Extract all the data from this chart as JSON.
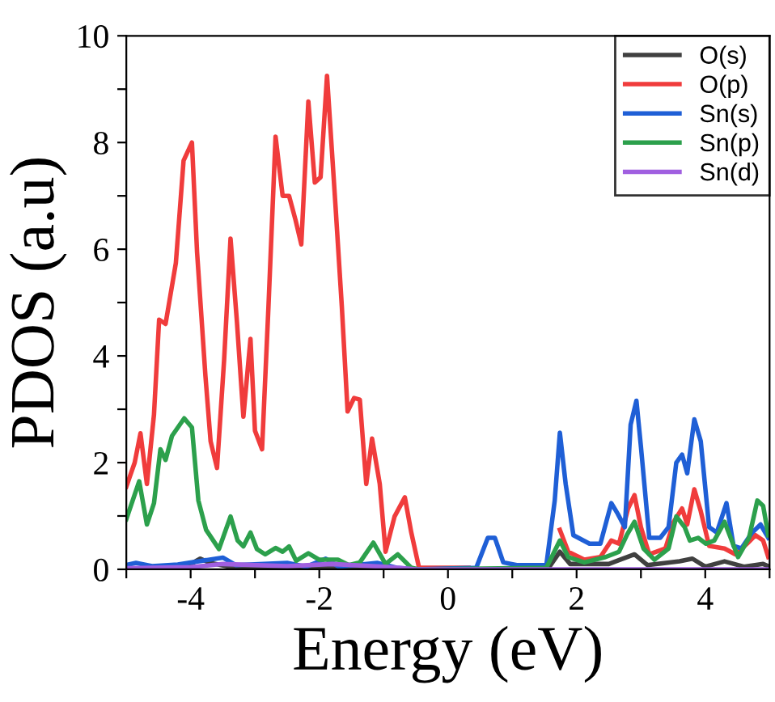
{
  "chart_data": {
    "type": "line",
    "xlabel": "Energy (eV)",
    "ylabel": "PDOS (a.u)",
    "xlim": [
      -5,
      5
    ],
    "ylim": [
      0,
      10
    ],
    "xticks": [
      {
        "value": -5,
        "label": null
      },
      -4,
      {
        "value": -3,
        "label": null
      },
      -2,
      {
        "value": -1,
        "label": null
      },
      0,
      {
        "value": 1,
        "label": null
      },
      2,
      {
        "value": 3,
        "label": null
      },
      4,
      {
        "value": 5,
        "label": null
      }
    ],
    "yticks": [
      0,
      {
        "value": 1,
        "label": null
      },
      2,
      {
        "value": 3,
        "label": null
      },
      4,
      {
        "value": 5,
        "label": null
      },
      6,
      {
        "value": 7,
        "label": null
      },
      8,
      {
        "value": 9,
        "label": null
      },
      10
    ],
    "grid": false,
    "legend": "top right",
    "marker": "none",
    "line_style": "solid",
    "series": [
      {
        "name": "O(s)",
        "color": "#404040",
        "x": [
          -5,
          -4.5,
          -4,
          -3.85,
          -3.7,
          -3.4,
          -2,
          -0.5,
          1.55,
          1.74,
          1.9,
          2.5,
          2.9,
          3.1,
          3.6,
          3.8,
          4.0,
          4.3,
          4.6,
          4.9,
          5
        ],
        "values": [
          0.0,
          0.03,
          0.1,
          0.2,
          0.12,
          0.05,
          0.02,
          0,
          0,
          0.33,
          0.1,
          0.1,
          0.28,
          0.08,
          0.15,
          0.2,
          0.05,
          0.15,
          0.05,
          0.1,
          0.05
        ]
      },
      {
        "name": "O(p)",
        "color": "#f03c3c",
        "x": [
          -5.0,
          -4.87,
          -4.78,
          -4.68,
          -4.57,
          -4.49,
          -4.39,
          -4.23,
          -4.11,
          -3.98,
          -3.9,
          -3.77,
          -3.69,
          -3.59,
          -3.48,
          -3.38,
          -3.28,
          -3.18,
          -3.07,
          -3.0,
          -2.89,
          -2.79,
          -2.68,
          -2.57,
          -2.47,
          -2.37,
          -2.28,
          -2.17,
          -2.07,
          -1.98,
          -1.88,
          -1.75,
          -1.65,
          -1.56,
          -1.46,
          -1.37,
          -1.27,
          -1.18,
          -1.06,
          -0.97,
          -0.83,
          -0.67,
          -0.57,
          -0.45,
          0.32,
          1.53,
          1.74,
          1.87,
          2.12,
          2.37,
          2.54,
          2.66,
          2.8,
          2.9,
          3.0,
          3.13,
          3.38,
          3.51,
          3.64,
          3.72,
          3.83,
          3.93,
          4.06,
          4.3,
          4.47,
          4.65,
          4.78,
          4.9,
          4.98
        ],
        "values": [
          1.55,
          2.0,
          2.55,
          1.6,
          2.9,
          4.68,
          4.6,
          5.74,
          7.66,
          8.0,
          5.94,
          3.62,
          2.4,
          1.9,
          3.92,
          6.2,
          4.63,
          2.86,
          4.32,
          2.6,
          2.25,
          4.93,
          8.11,
          7.0,
          7.0,
          6.55,
          6.09,
          8.77,
          7.25,
          7.35,
          9.25,
          6.85,
          4.93,
          2.96,
          3.21,
          3.18,
          1.6,
          2.45,
          1.6,
          0.33,
          0.99,
          1.35,
          0.69,
          0.03,
          0.03,
          null,
          0.74,
          0.33,
          0.18,
          0.23,
          0.54,
          0.48,
          1.14,
          1.39,
          0.79,
          0.28,
          0.39,
          0.89,
          1.14,
          0.84,
          1.5,
          1.09,
          0.44,
          0.39,
          0.28,
          0.48,
          0.64,
          0.54,
          0.23
        ]
      },
      {
        "name": "Sn(s)",
        "color": "#1f5fd6",
        "x": [
          -5,
          -4.85,
          -4.6,
          -4.2,
          -3.5,
          -3.3,
          -2.5,
          -2.2,
          -1.9,
          -1.7,
          -1.1,
          -0.8,
          -0.5,
          0.44,
          0.62,
          0.73,
          0.86,
          1.07,
          1.53,
          1.66,
          1.74,
          1.83,
          1.95,
          2.2,
          2.37,
          2.54,
          2.64,
          2.75,
          2.84,
          2.93,
          3.0,
          3.13,
          3.3,
          3.43,
          3.55,
          3.64,
          3.72,
          3.83,
          3.93,
          4.06,
          4.18,
          4.33,
          4.44,
          4.56,
          4.73,
          4.86,
          4.98
        ],
        "values": [
          0.08,
          0.12,
          0.06,
          0.09,
          0.22,
          0.08,
          0.12,
          0.05,
          0.2,
          0.05,
          0.12,
          0.03,
          0,
          0.03,
          0.59,
          0.59,
          0.13,
          0.08,
          0.08,
          1.29,
          2.56,
          1.6,
          0.64,
          0.48,
          0.48,
          1.24,
          1.04,
          0.79,
          2.71,
          3.16,
          2.3,
          0.59,
          0.59,
          0.79,
          2.0,
          2.15,
          1.8,
          2.81,
          2.4,
          0.79,
          0.69,
          1.24,
          0.44,
          0.39,
          0.69,
          0.84,
          0.59
        ]
      },
      {
        "name": "Sn(p)",
        "color": "#2ca04c",
        "x": [
          -5.0,
          -4.8,
          -4.68,
          -4.57,
          -4.47,
          -4.39,
          -4.29,
          -4.1,
          -3.98,
          -3.88,
          -3.76,
          -3.56,
          -3.38,
          -3.27,
          -3.18,
          -3.07,
          -2.97,
          -2.84,
          -2.68,
          -2.57,
          -2.47,
          -2.36,
          -2.17,
          -2.0,
          -1.71,
          -1.54,
          -1.37,
          -1.16,
          -0.97,
          -0.78,
          -0.57,
          -0.45,
          1.53,
          1.74,
          1.87,
          2.12,
          2.45,
          2.66,
          2.78,
          2.9,
          3.04,
          3.21,
          3.43,
          3.55,
          3.68,
          3.76,
          3.89,
          4.01,
          4.14,
          4.3,
          4.51,
          4.68,
          4.81,
          4.9,
          4.98
        ],
        "values": [
          0.94,
          1.65,
          0.84,
          1.24,
          2.25,
          2.05,
          2.5,
          2.83,
          2.66,
          1.29,
          0.74,
          0.38,
          0.99,
          0.54,
          0.43,
          0.69,
          0.38,
          0.28,
          0.4,
          0.33,
          0.43,
          0.16,
          0.3,
          0.18,
          0.18,
          0.08,
          0.13,
          0.5,
          0.1,
          0.28,
          0.03,
          0,
          0.03,
          0.54,
          0.23,
          0.13,
          0.23,
          0.33,
          0.64,
          0.89,
          0.39,
          0.18,
          0.39,
          0.99,
          0.79,
          0.54,
          0.59,
          0.48,
          0.54,
          0.89,
          0.23,
          0.59,
          1.29,
          1.19,
          0.64
        ]
      },
      {
        "name": "Sn(d)",
        "color": "#a05fe0",
        "x": [
          -5,
          -4,
          -3.5,
          -2.5,
          -1.8,
          -1,
          -0.5,
          5
        ],
        "values": [
          0.02,
          0.04,
          0.1,
          0.06,
          0.1,
          0.05,
          0,
          0
        ]
      }
    ]
  }
}
